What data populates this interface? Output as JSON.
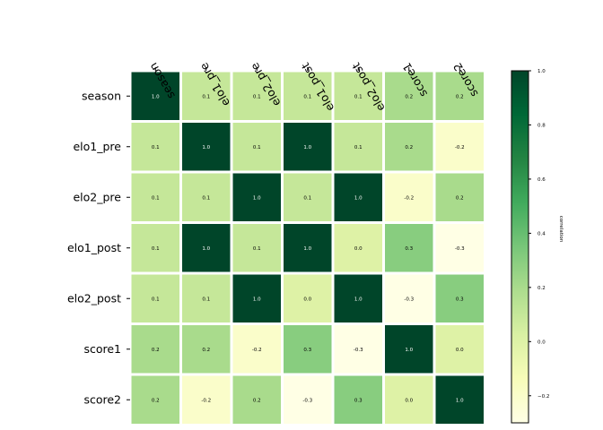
{
  "chart_data": {
    "type": "heatmap",
    "row_labels": [
      "season",
      "elo1_pre",
      "elo2_pre",
      "elo1_post",
      "elo2_post",
      "score1",
      "score2"
    ],
    "col_labels": [
      "season",
      "elo1_pre",
      "elo2_pre",
      "elo1_post",
      "elo2_post",
      "score1",
      "score2"
    ],
    "values": [
      [
        1.0,
        0.1,
        0.1,
        0.1,
        0.1,
        0.2,
        0.2
      ],
      [
        0.1,
        1.0,
        0.1,
        1.0,
        0.1,
        0.2,
        -0.2
      ],
      [
        0.1,
        0.1,
        1.0,
        0.1,
        1.0,
        -0.2,
        0.2
      ],
      [
        0.1,
        1.0,
        0.1,
        1.0,
        0.0,
        0.3,
        -0.3
      ],
      [
        0.1,
        0.1,
        1.0,
        0.0,
        1.0,
        -0.3,
        0.3
      ],
      [
        0.2,
        0.2,
        -0.2,
        0.3,
        -0.3,
        1.0,
        0.0
      ],
      [
        0.2,
        -0.2,
        0.2,
        -0.3,
        0.3,
        0.0,
        1.0
      ]
    ],
    "colorbar": {
      "label": "correlation",
      "range": [
        -0.3,
        1.0
      ],
      "ticks": [
        -0.2,
        0.0,
        0.2,
        0.4,
        0.6,
        0.8,
        1.0
      ]
    },
    "colormap": [
      "#ffffe5",
      "#f7fcb9",
      "#d9f0a3",
      "#addd8e",
      "#78c679",
      "#41ab5d",
      "#238443",
      "#006837",
      "#004529"
    ]
  }
}
